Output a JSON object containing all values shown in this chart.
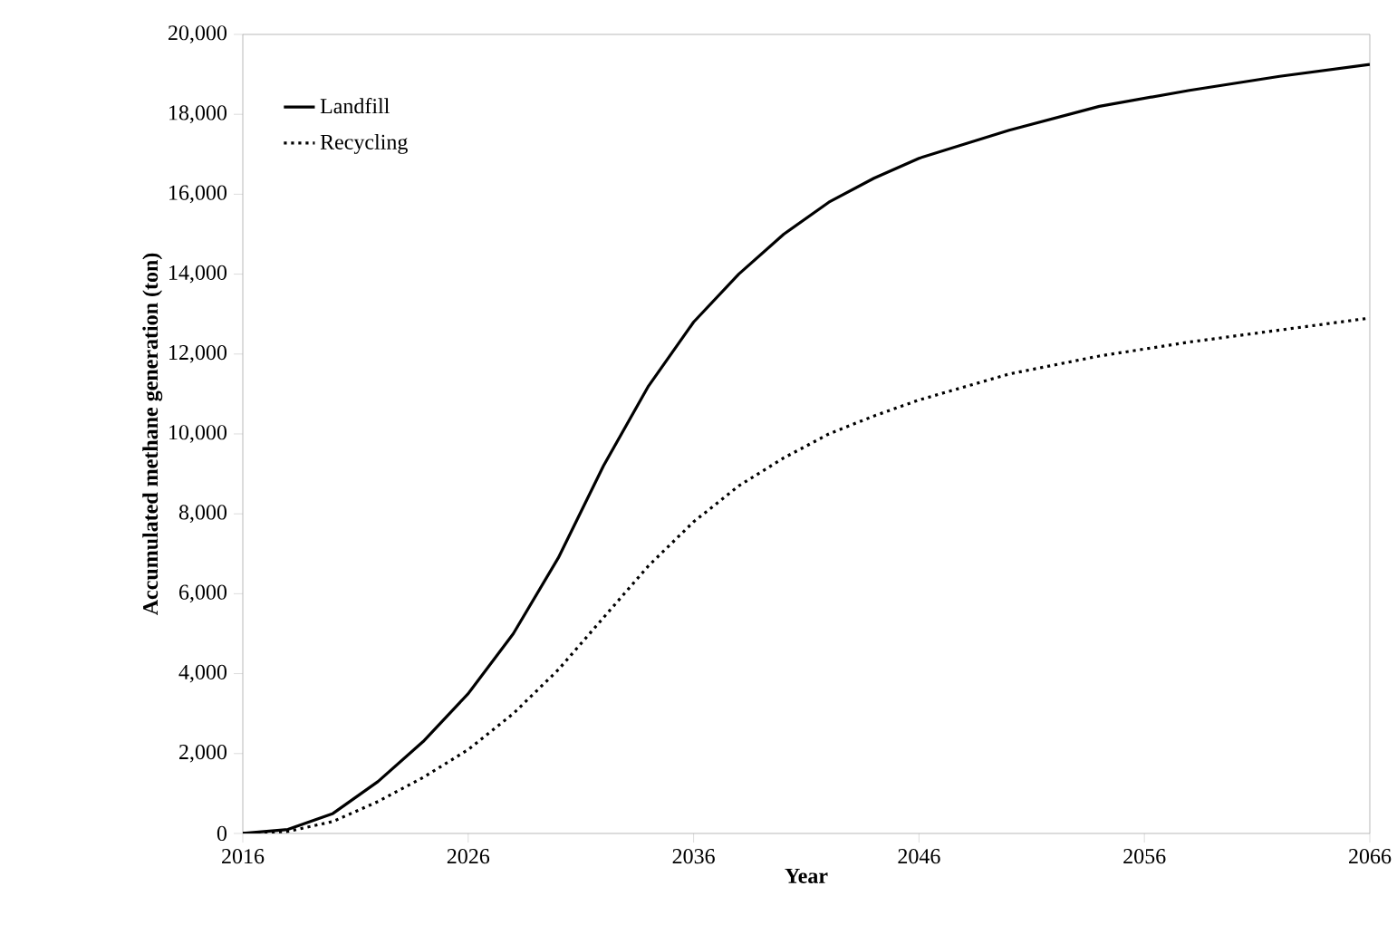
{
  "chart_data": {
    "type": "line",
    "xlabel": "Year",
    "ylabel": "Accumulated methane generation (ton)",
    "x": [
      2016,
      2018,
      2020,
      2022,
      2024,
      2026,
      2028,
      2030,
      2032,
      2034,
      2036,
      2038,
      2040,
      2042,
      2044,
      2046,
      2050,
      2054,
      2058,
      2062,
      2066
    ],
    "series": [
      {
        "name": "Landfill",
        "color": "#000000",
        "line_style": "solid",
        "values": [
          0,
          100,
          500,
          1300,
          2300,
          3500,
          5000,
          6900,
          9200,
          11200,
          12800,
          14000,
          15000,
          15800,
          16400,
          16900,
          17600,
          18200,
          18600,
          18950,
          19250
        ]
      },
      {
        "name": "Recycling",
        "color": "#000000",
        "line_style": "dotted",
        "values": [
          0,
          50,
          300,
          800,
          1400,
          2100,
          3000,
          4100,
          5400,
          6700,
          7800,
          8700,
          9400,
          10000,
          10450,
          10850,
          11500,
          11950,
          12300,
          12600,
          12900
        ]
      }
    ],
    "xlim": [
      2016,
      2066
    ],
    "xticks": [
      2016,
      2026,
      2036,
      2046,
      2056,
      2066
    ],
    "ylim": [
      0,
      20000
    ],
    "yticks": [
      {
        "value": 0,
        "label": "0"
      },
      {
        "value": 2000,
        "label": "2,000"
      },
      {
        "value": 4000,
        "label": "4,000"
      },
      {
        "value": 6000,
        "label": "6,000"
      },
      {
        "value": 8000,
        "label": "8,000"
      },
      {
        "value": 10000,
        "label": "10,000"
      },
      {
        "value": 12000,
        "label": "12,000"
      },
      {
        "value": 14000,
        "label": "14,000"
      },
      {
        "value": 16000,
        "label": "16,000"
      },
      {
        "value": 18000,
        "label": "18,000"
      },
      {
        "value": 20000,
        "label": "20,000"
      }
    ],
    "grid": false,
    "legend": "top left",
    "marker": "none"
  }
}
